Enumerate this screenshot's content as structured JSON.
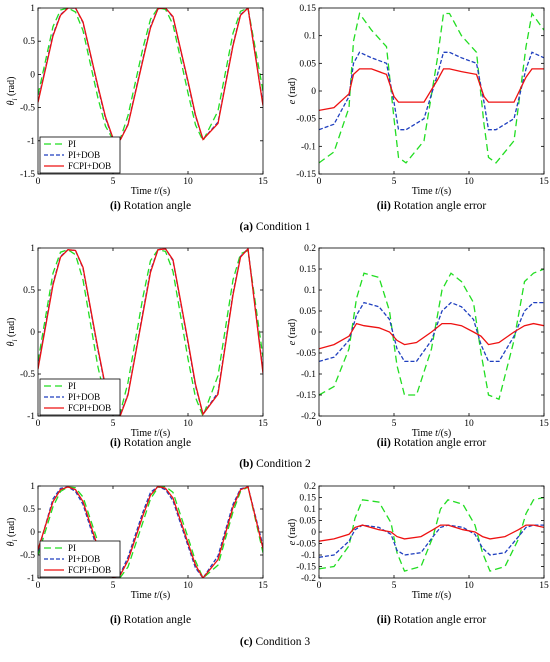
{
  "colors": {
    "PI": "#22dd22",
    "PI+DOB": "#1f3fbf",
    "FCPI+DOB": "#ee1111"
  },
  "legend": [
    "PI",
    "PI+DOB",
    "FCPI+DOB"
  ],
  "conditions": [
    {
      "caption_letter": "(a)",
      "caption_text": "Condition 1",
      "left_caption_letter": "(i)",
      "left_caption_text": "Rotation angle",
      "right_caption_letter": "(ii)",
      "right_caption_text": "Rotation angle error"
    },
    {
      "caption_letter": "(b)",
      "caption_text": "Condition 2",
      "left_caption_letter": "(i)",
      "left_caption_text": "Rotation angle",
      "right_caption_letter": "(ii)",
      "right_caption_text": "Rotation angle error"
    },
    {
      "caption_letter": "(c)",
      "caption_text": "Condition 3",
      "left_caption_letter": "(i)",
      "left_caption_text": "Rotation angle",
      "right_caption_letter": "(ii)",
      "right_caption_text": "Rotation angle error"
    }
  ],
  "axis_text": {
    "xlabel": "Time t/(s)",
    "ylabel_angle": "θ_i (rad)",
    "ylabel_error": "e (rad)"
  },
  "chart_data": [
    {
      "type": "line",
      "condition": "Condition 1",
      "panel": "Rotation angle",
      "xlim": [
        0,
        15
      ],
      "ylim": [
        -1.5,
        1.0
      ],
      "xticks": [
        0,
        5,
        10,
        15
      ],
      "yticks": [
        -1.5,
        -1,
        -0.5,
        0,
        0.5,
        1
      ],
      "x": [
        0,
        1,
        1.5,
        2,
        2.5,
        3,
        4,
        4.5,
        5,
        5.5,
        6,
        7,
        7.5,
        8,
        8.5,
        9,
        10,
        10.5,
        11,
        12,
        13,
        13.5,
        14,
        15
      ],
      "series": [
        {
          "name": "PI",
          "values": [
            -0.31,
            0.72,
            0.97,
            1.0,
            0.94,
            0.66,
            -0.36,
            -0.78,
            -0.98,
            -0.96,
            -0.62,
            0.4,
            0.83,
            1.0,
            0.98,
            0.75,
            -0.28,
            -0.76,
            -1.0,
            -0.55,
            0.62,
            0.95,
            1.0,
            -0.25
          ]
        },
        {
          "name": "PI+DOB",
          "values": [
            -0.4,
            0.6,
            0.9,
            1.0,
            1.0,
            0.78,
            -0.2,
            -0.66,
            -0.97,
            -0.98,
            -0.75,
            0.24,
            0.72,
            0.99,
            1.0,
            0.86,
            -0.12,
            -0.63,
            -0.98,
            -0.72,
            0.45,
            0.9,
            1.0,
            -0.45
          ]
        },
        {
          "name": "FCPI+DOB",
          "values": [
            -0.42,
            0.58,
            0.89,
            1.0,
            1.0,
            0.79,
            -0.18,
            -0.64,
            -0.96,
            -0.98,
            -0.76,
            0.22,
            0.7,
            0.99,
            1.0,
            0.87,
            -0.1,
            -0.61,
            -0.98,
            -0.74,
            0.43,
            0.89,
            1.0,
            -0.47
          ]
        }
      ]
    },
    {
      "type": "line",
      "condition": "Condition 1",
      "panel": "Rotation angle error",
      "xlim": [
        0,
        15
      ],
      "ylim": [
        -0.15,
        0.15
      ],
      "xticks": [
        0,
        5,
        10,
        15
      ],
      "yticks": [
        -0.15,
        -0.1,
        -0.05,
        0,
        0.05,
        0.1,
        0.15
      ],
      "x": [
        0,
        1,
        2,
        2.3,
        2.7,
        3.5,
        4.5,
        5,
        5.3,
        5.8,
        7,
        7.9,
        8.3,
        8.7,
        9.5,
        10.5,
        11,
        11.3,
        11.8,
        13,
        13.8,
        14.2,
        15
      ],
      "series": [
        {
          "name": "PI",
          "values": [
            -0.13,
            -0.11,
            -0.03,
            0.09,
            0.14,
            0.11,
            0.08,
            -0.05,
            -0.12,
            -0.13,
            -0.09,
            0.06,
            0.14,
            0.14,
            0.1,
            0.07,
            -0.06,
            -0.12,
            -0.13,
            -0.09,
            0.08,
            0.14,
            0.11
          ]
        },
        {
          "name": "PI+DOB",
          "values": [
            -0.07,
            -0.06,
            -0.01,
            0.05,
            0.07,
            0.06,
            0.05,
            -0.02,
            -0.07,
            -0.07,
            -0.05,
            0.03,
            0.07,
            0.07,
            0.06,
            0.05,
            -0.02,
            -0.07,
            -0.07,
            -0.05,
            0.04,
            0.07,
            0.06
          ]
        },
        {
          "name": "FCPI+DOB",
          "values": [
            -0.035,
            -0.03,
            -0.005,
            0.03,
            0.04,
            0.04,
            0.03,
            -0.01,
            -0.02,
            -0.02,
            -0.02,
            0.02,
            0.04,
            0.04,
            0.035,
            0.03,
            -0.01,
            -0.02,
            -0.02,
            -0.02,
            0.025,
            0.04,
            0.04
          ]
        }
      ]
    },
    {
      "type": "line",
      "condition": "Condition 2",
      "panel": "Rotation angle",
      "xlim": [
        0,
        15
      ],
      "ylim": [
        -1.0,
        1.0
      ],
      "xticks": [
        0,
        5,
        10,
        15
      ],
      "yticks": [
        -1,
        -0.5,
        0,
        0.5,
        1
      ],
      "x": [
        0,
        1,
        1.5,
        2,
        2.5,
        3,
        4,
        4.5,
        5,
        5.5,
        6,
        7,
        7.5,
        8,
        8.5,
        9,
        10,
        10.5,
        11,
        12,
        13,
        13.5,
        14,
        15
      ],
      "series": [
        {
          "name": "PI",
          "values": [
            -0.35,
            0.7,
            0.95,
            0.98,
            0.92,
            0.62,
            -0.42,
            -0.8,
            -0.98,
            -0.95,
            -0.6,
            0.42,
            0.85,
            0.98,
            0.96,
            0.72,
            -0.32,
            -0.78,
            -1.0,
            -0.52,
            0.62,
            0.93,
            0.97,
            -0.3
          ]
        },
        {
          "name": "PI+DOB",
          "values": [
            -0.42,
            0.58,
            0.9,
            0.98,
            0.97,
            0.76,
            -0.22,
            -0.66,
            -0.96,
            -0.98,
            -0.74,
            0.24,
            0.73,
            0.98,
            0.99,
            0.85,
            -0.13,
            -0.64,
            -0.98,
            -0.72,
            0.46,
            0.9,
            0.99,
            -0.47
          ]
        },
        {
          "name": "FCPI+DOB",
          "values": [
            -0.44,
            0.56,
            0.89,
            0.98,
            0.97,
            0.77,
            -0.2,
            -0.65,
            -0.96,
            -0.99,
            -0.75,
            0.22,
            0.71,
            0.98,
            0.99,
            0.86,
            -0.11,
            -0.62,
            -0.98,
            -0.74,
            0.44,
            0.89,
            0.99,
            -0.49
          ]
        }
      ]
    },
    {
      "type": "line",
      "condition": "Condition 2",
      "panel": "Rotation angle error",
      "xlim": [
        0,
        15
      ],
      "ylim": [
        -0.2,
        0.2
      ],
      "xticks": [
        0,
        5,
        10,
        15
      ],
      "yticks": [
        -0.2,
        -0.15,
        -0.1,
        -0.05,
        0,
        0.05,
        0.1,
        0.15,
        0.2
      ],
      "x": [
        0,
        1,
        2,
        2.5,
        3,
        4,
        4.7,
        5.2,
        5.7,
        6.5,
        7.5,
        8.2,
        8.8,
        9.5,
        10.3,
        10.8,
        11.3,
        12,
        13,
        13.7,
        14.3,
        15
      ],
      "series": [
        {
          "name": "PI",
          "values": [
            -0.15,
            -0.13,
            -0.04,
            0.08,
            0.14,
            0.13,
            0.05,
            -0.08,
            -0.15,
            -0.15,
            -0.04,
            0.1,
            0.14,
            0.12,
            0.07,
            -0.05,
            -0.15,
            -0.16,
            -0.02,
            0.12,
            0.14,
            0.15
          ]
        },
        {
          "name": "PI+DOB",
          "values": [
            -0.07,
            -0.06,
            -0.02,
            0.04,
            0.07,
            0.06,
            0.03,
            -0.04,
            -0.07,
            -0.07,
            -0.02,
            0.05,
            0.07,
            0.06,
            0.03,
            -0.03,
            -0.07,
            -0.07,
            -0.01,
            0.05,
            0.07,
            0.07
          ]
        },
        {
          "name": "FCPI+DOB",
          "values": [
            -0.04,
            -0.03,
            -0.01,
            0.02,
            0.015,
            0.01,
            0.0,
            -0.02,
            -0.03,
            -0.025,
            0.0,
            0.02,
            0.02,
            0.015,
            0.0,
            -0.01,
            -0.03,
            -0.025,
            0.0,
            0.015,
            0.02,
            0.015
          ]
        }
      ]
    },
    {
      "type": "line",
      "condition": "Condition 3",
      "panel": "Rotation angle",
      "xlim": [
        0,
        15
      ],
      "ylim": [
        -1.0,
        1.0
      ],
      "xticks": [
        0,
        5,
        10,
        15
      ],
      "yticks": [
        -1,
        -0.5,
        0,
        0.5,
        1
      ],
      "x": [
        0,
        1,
        1.5,
        2,
        2.5,
        3,
        4,
        4.5,
        5,
        5.5,
        6,
        7,
        7.5,
        8,
        8.5,
        9,
        10,
        10.5,
        11,
        12,
        13,
        13.5,
        14,
        15
      ],
      "series": [
        {
          "name": "PI",
          "values": [
            -0.5,
            0.55,
            0.88,
            0.98,
            0.96,
            0.76,
            -0.22,
            -0.66,
            -0.95,
            -0.98,
            -0.76,
            0.22,
            0.72,
            0.97,
            0.99,
            0.86,
            -0.12,
            -0.63,
            -1.0,
            -0.72,
            0.44,
            0.88,
            0.98,
            -0.45
          ]
        },
        {
          "name": "PI+DOB",
          "values": [
            -0.42,
            0.72,
            0.95,
            0.98,
            0.88,
            0.6,
            -0.42,
            -0.82,
            -1.0,
            -0.9,
            -0.55,
            0.44,
            0.86,
            0.99,
            0.92,
            0.68,
            -0.3,
            -0.78,
            -1.0,
            -0.52,
            0.6,
            0.94,
            0.98,
            -0.3
          ]
        },
        {
          "name": "FCPI+DOB",
          "values": [
            -0.38,
            0.66,
            0.92,
            0.98,
            0.92,
            0.66,
            -0.34,
            -0.76,
            -1.0,
            -0.93,
            -0.62,
            0.36,
            0.8,
            0.99,
            0.95,
            0.74,
            -0.24,
            -0.72,
            -1.0,
            -0.6,
            0.54,
            0.92,
            0.98,
            -0.36
          ]
        }
      ]
    },
    {
      "type": "line",
      "condition": "Condition 3",
      "panel": "Rotation angle error",
      "xlim": [
        0,
        15
      ],
      "ylim": [
        -0.2,
        0.2
      ],
      "xticks": [
        0,
        5,
        10,
        15
      ],
      "yticks": [
        -0.2,
        -0.15,
        -0.1,
        -0.05,
        0,
        0.05,
        0.1,
        0.15,
        0.2
      ],
      "x": [
        0,
        1,
        2,
        2.4,
        2.9,
        4,
        4.8,
        5.2,
        5.7,
        6.8,
        7.6,
        8.1,
        8.6,
        9.6,
        10.4,
        10.9,
        11.4,
        12.4,
        13.3,
        13.8,
        14.3,
        15
      ],
      "series": [
        {
          "name": "PI",
          "values": [
            -0.16,
            -0.15,
            -0.06,
            0.06,
            0.14,
            0.13,
            0.04,
            -0.09,
            -0.17,
            -0.15,
            -0.02,
            0.1,
            0.14,
            0.12,
            0.03,
            -0.09,
            -0.17,
            -0.15,
            -0.03,
            0.08,
            0.14,
            0.15
          ]
        },
        {
          "name": "PI+DOB",
          "values": [
            -0.11,
            -0.1,
            -0.04,
            0.01,
            0.03,
            0.02,
            -0.01,
            -0.08,
            -0.1,
            -0.09,
            -0.02,
            0.02,
            0.03,
            0.02,
            -0.01,
            -0.07,
            -0.1,
            -0.09,
            -0.02,
            0.02,
            0.03,
            0.03
          ]
        },
        {
          "name": "FCPI+DOB",
          "values": [
            -0.04,
            -0.03,
            -0.01,
            0.02,
            0.03,
            0.01,
            0.0,
            -0.02,
            -0.03,
            -0.02,
            0.01,
            0.03,
            0.03,
            0.01,
            0.0,
            -0.02,
            -0.03,
            -0.02,
            0.01,
            0.03,
            0.03,
            0.02
          ]
        }
      ]
    }
  ]
}
